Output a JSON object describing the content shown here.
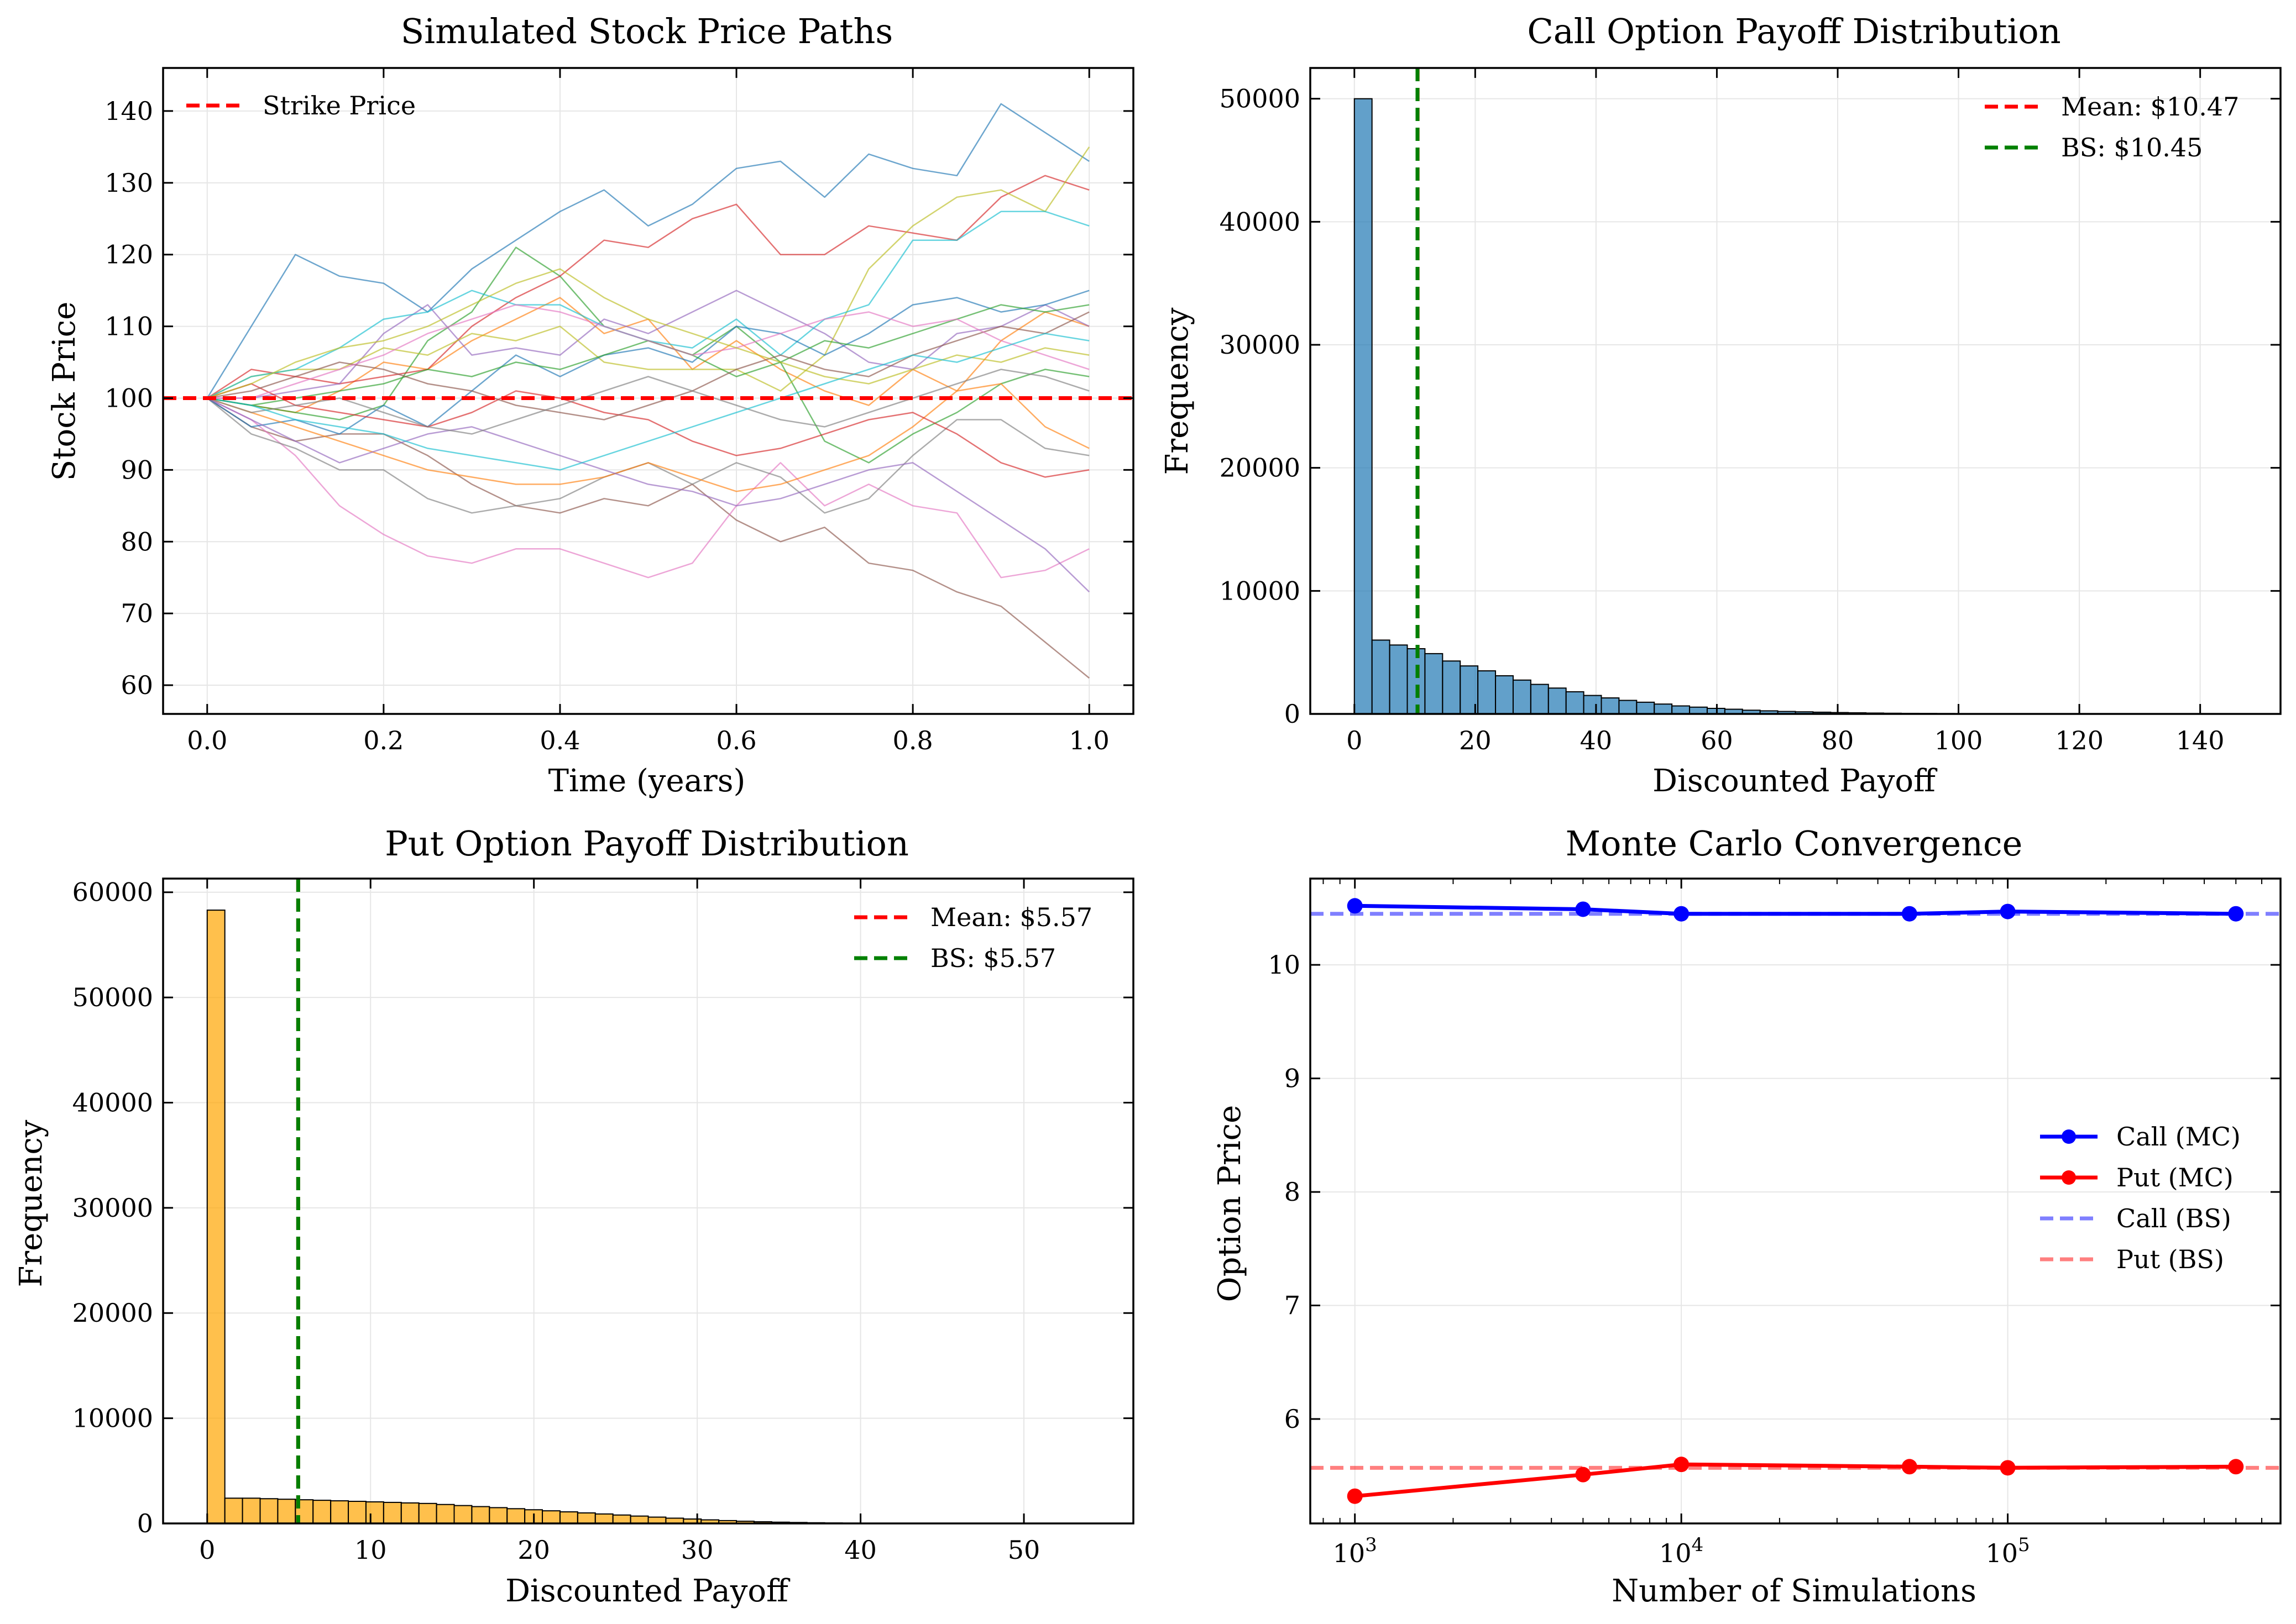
{
  "figure": {
    "panels": [
      {
        "title": "Simulated Stock Price Paths",
        "xlabel": "Time (years)",
        "ylabel": "Stock Price"
      },
      {
        "title": "Call Option Payoff Distribution",
        "xlabel": "Discounted Payoff",
        "ylabel": "Frequency"
      },
      {
        "title": "Put Option Payoff Distribution",
        "xlabel": "Discounted Payoff",
        "ylabel": "Frequency"
      },
      {
        "title": "Monte Carlo Convergence",
        "xlabel": "Number of Simulations",
        "ylabel": "Option Price"
      }
    ]
  },
  "chart_data": [
    {
      "type": "line",
      "title": "Simulated Stock Price Paths",
      "xlabel": "Time (years)",
      "ylabel": "Stock Price",
      "xlim": [
        -0.05,
        1.05
      ],
      "ylim": [
        56,
        146
      ],
      "xticks": [
        0.0,
        0.2,
        0.4,
        0.6,
        0.8,
        1.0
      ],
      "xtick_labels": [
        "0.0",
        "0.2",
        "0.4",
        "0.6",
        "0.8",
        "1.0"
      ],
      "yticks": [
        60,
        70,
        80,
        90,
        100,
        110,
        120,
        130,
        140
      ],
      "grid": true,
      "legend": {
        "position": "upper left",
        "entries": [
          "Strike Price"
        ]
      },
      "reference_lines": [
        {
          "name": "Strike Price",
          "y": 100,
          "color": "#ff0000",
          "style": "dashed"
        }
      ],
      "series_colors": [
        "#1f77b4",
        "#ff7f0e",
        "#2ca02c",
        "#d62728",
        "#9467bd",
        "#8c564b",
        "#e377c2",
        "#7f7f7f",
        "#bcbd22",
        "#17becf"
      ],
      "x": [
        0.0,
        0.05,
        0.1,
        0.15,
        0.2,
        0.25,
        0.3,
        0.35,
        0.4,
        0.45,
        0.5,
        0.55,
        0.6,
        0.65,
        0.7,
        0.75,
        0.8,
        0.85,
        0.9,
        0.95,
        1.0
      ],
      "series": [
        {
          "values": [
            100,
            110,
            120,
            117,
            116,
            112,
            118,
            122,
            126,
            129,
            124,
            127,
            132,
            133,
            128,
            134,
            132,
            131,
            141,
            137,
            133
          ]
        },
        {
          "values": [
            100,
            99,
            98,
            101,
            105,
            104,
            108,
            111,
            114,
            109,
            111,
            104,
            108,
            104,
            101,
            99,
            104,
            101,
            108,
            112,
            110
          ]
        },
        {
          "values": [
            100,
            99,
            98,
            97,
            99,
            108,
            112,
            121,
            117,
            110,
            108,
            106,
            110,
            105,
            94,
            91,
            95,
            98,
            102,
            104,
            103
          ]
        },
        {
          "values": [
            100,
            104,
            103,
            102,
            103,
            104,
            110,
            114,
            117,
            122,
            121,
            125,
            127,
            120,
            120,
            124,
            123,
            122,
            128,
            131,
            129
          ]
        },
        {
          "values": [
            100,
            100,
            101,
            102,
            109,
            113,
            106,
            107,
            106,
            111,
            109,
            112,
            115,
            112,
            109,
            105,
            104,
            109,
            110,
            113,
            110
          ]
        },
        {
          "values": [
            100,
            96,
            94,
            95,
            95,
            92,
            88,
            85,
            84,
            86,
            85,
            88,
            83,
            80,
            82,
            77,
            76,
            73,
            71,
            66,
            61
          ]
        },
        {
          "values": [
            100,
            97,
            92,
            85,
            81,
            78,
            77,
            79,
            79,
            77,
            75,
            77,
            85,
            91,
            85,
            88,
            85,
            84,
            75,
            76,
            79
          ]
        },
        {
          "values": [
            100,
            95,
            93,
            90,
            90,
            86,
            84,
            85,
            86,
            89,
            91,
            88,
            91,
            89,
            84,
            86,
            92,
            97,
            97,
            93,
            92
          ]
        },
        {
          "values": [
            100,
            103,
            104,
            104,
            107,
            106,
            109,
            108,
            110,
            105,
            104,
            104,
            104,
            101,
            106,
            118,
            124,
            128,
            129,
            126,
            135
          ]
        },
        {
          "values": [
            100,
            103,
            104,
            107,
            111,
            112,
            115,
            113,
            113,
            110,
            108,
            107,
            111,
            106,
            111,
            113,
            122,
            122,
            126,
            126,
            124
          ]
        },
        {
          "values": [
            100,
            96,
            97,
            95,
            99,
            96,
            101,
            106,
            103,
            106,
            107,
            105,
            110,
            109,
            106,
            109,
            113,
            114,
            112,
            113,
            115
          ]
        },
        {
          "values": [
            100,
            98,
            96,
            94,
            92,
            90,
            89,
            88,
            88,
            89,
            91,
            89,
            87,
            88,
            90,
            92,
            96,
            101,
            102,
            96,
            93
          ]
        },
        {
          "values": [
            100,
            99,
            100,
            101,
            102,
            104,
            103,
            105,
            104,
            106,
            108,
            106,
            103,
            105,
            108,
            107,
            109,
            111,
            113,
            112,
            113
          ]
        },
        {
          "values": [
            100,
            102,
            99,
            98,
            97,
            96,
            98,
            101,
            100,
            98,
            97,
            94,
            92,
            93,
            95,
            97,
            98,
            95,
            91,
            89,
            90
          ]
        },
        {
          "values": [
            100,
            97,
            94,
            91,
            93,
            95,
            96,
            94,
            92,
            90,
            88,
            87,
            85,
            86,
            88,
            90,
            91,
            87,
            83,
            79,
            73
          ]
        },
        {
          "values": [
            100,
            101,
            103,
            105,
            104,
            102,
            101,
            99,
            98,
            97,
            99,
            101,
            104,
            106,
            104,
            103,
            106,
            108,
            110,
            109,
            112
          ]
        },
        {
          "values": [
            100,
            100,
            102,
            104,
            106,
            109,
            111,
            113,
            112,
            110,
            108,
            106,
            107,
            109,
            111,
            112,
            110,
            111,
            108,
            106,
            104
          ]
        },
        {
          "values": [
            100,
            98,
            99,
            100,
            98,
            96,
            95,
            97,
            99,
            101,
            103,
            101,
            99,
            97,
            96,
            98,
            100,
            102,
            104,
            103,
            101
          ]
        },
        {
          "values": [
            100,
            102,
            105,
            107,
            108,
            110,
            113,
            116,
            118,
            114,
            111,
            109,
            107,
            105,
            103,
            102,
            104,
            106,
            105,
            107,
            106
          ]
        },
        {
          "values": [
            100,
            99,
            97,
            96,
            95,
            93,
            92,
            91,
            90,
            92,
            94,
            96,
            98,
            100,
            102,
            104,
            106,
            105,
            107,
            109,
            108
          ]
        }
      ]
    },
    {
      "type": "bar",
      "title": "Call Option Payoff Distribution",
      "xlabel": "Discounted Payoff",
      "ylabel": "Frequency",
      "xlim": [
        -7.3,
        153.3
      ],
      "ylim": [
        0,
        52500
      ],
      "xticks": [
        0,
        20,
        40,
        60,
        80,
        100,
        120,
        140
      ],
      "yticks": [
        0,
        10000,
        20000,
        30000,
        40000,
        50000
      ],
      "grid": true,
      "bar_color": "#1f77b4",
      "bin_width": 2.92,
      "bin_start": 0,
      "values": [
        50000,
        6000,
        5600,
        5300,
        4900,
        4300,
        3900,
        3500,
        3100,
        2750,
        2400,
        2100,
        1800,
        1500,
        1300,
        1100,
        950,
        800,
        650,
        550,
        450,
        380,
        300,
        250,
        200,
        170,
        140,
        110,
        90,
        70,
        55,
        45,
        35,
        28,
        22,
        17,
        13,
        10,
        8,
        6,
        5,
        4,
        3,
        3,
        2,
        2,
        1,
        1,
        1,
        1
      ],
      "legend": {
        "position": "upper right",
        "entries": [
          "Mean: $10.47",
          "BS: $10.45"
        ]
      },
      "reference_lines": [
        {
          "name": "Mean: $10.47",
          "x": 10.47,
          "color": "#ff0000",
          "style": "dashed"
        },
        {
          "name": "BS: $10.45",
          "x": 10.45,
          "color": "#008000",
          "style": "dashed"
        }
      ]
    },
    {
      "type": "bar",
      "title": "Put Option Payoff Distribution",
      "xlabel": "Discounted Payoff",
      "ylabel": "Frequency",
      "xlim": [
        -2.7,
        56.7
      ],
      "ylim": [
        0,
        61300
      ],
      "xticks": [
        0,
        10,
        20,
        30,
        40,
        50
      ],
      "yticks": [
        0,
        10000,
        20000,
        30000,
        40000,
        50000,
        60000
      ],
      "grid": true,
      "bar_color": "#ffa500",
      "bin_width": 1.08,
      "bin_start": 0,
      "values": [
        58300,
        2400,
        2400,
        2350,
        2300,
        2250,
        2200,
        2150,
        2100,
        2050,
        2000,
        1950,
        1900,
        1800,
        1700,
        1600,
        1500,
        1400,
        1300,
        1200,
        1100,
        1000,
        900,
        800,
        700,
        600,
        500,
        420,
        340,
        270,
        210,
        160,
        120,
        90,
        65,
        45,
        30,
        20,
        15,
        10,
        7,
        5,
        3,
        2,
        2,
        1,
        1,
        1,
        0,
        0
      ],
      "legend": {
        "position": "upper right",
        "entries": [
          "Mean: $5.57",
          "BS: $5.57"
        ]
      },
      "reference_lines": [
        {
          "name": "Mean: $5.57",
          "x": 5.57,
          "color": "#ff0000",
          "style": "dashed"
        },
        {
          "name": "BS: $5.57",
          "x": 5.57,
          "color": "#008000",
          "style": "dashed"
        }
      ]
    },
    {
      "type": "line",
      "title": "Monte Carlo Convergence",
      "xlabel": "Number of Simulations",
      "ylabel": "Option Price",
      "xscale": "log",
      "xlim": [
        730,
        685000
      ],
      "ylim": [
        5.08,
        10.76
      ],
      "xticks": [
        1000,
        10000,
        100000
      ],
      "xtick_labels": [
        [
          "10",
          "3"
        ],
        [
          "10",
          "4"
        ],
        [
          "10",
          "5"
        ]
      ],
      "yticks": [
        6,
        7,
        8,
        9,
        10
      ],
      "grid": true,
      "x": [
        1000,
        5000,
        10000,
        50000,
        100000,
        500000
      ],
      "series": [
        {
          "name": "Call (MC)",
          "color": "#0000ff",
          "values": [
            10.52,
            10.49,
            10.45,
            10.45,
            10.47,
            10.45
          ]
        },
        {
          "name": "Put (MC)",
          "color": "#ff0000",
          "values": [
            5.32,
            5.51,
            5.6,
            5.58,
            5.57,
            5.58
          ]
        }
      ],
      "reference_lines": [
        {
          "name": "Call (BS)",
          "y": 10.45,
          "color": "#0000ff",
          "alpha": 0.5,
          "style": "dashed"
        },
        {
          "name": "Put (BS)",
          "y": 5.57,
          "color": "#ff0000",
          "alpha": 0.5,
          "style": "dashed"
        }
      ],
      "legend": {
        "position": "center right",
        "entries": [
          "Call (MC)",
          "Put (MC)",
          "Call (BS)",
          "Put (BS)"
        ]
      }
    }
  ]
}
